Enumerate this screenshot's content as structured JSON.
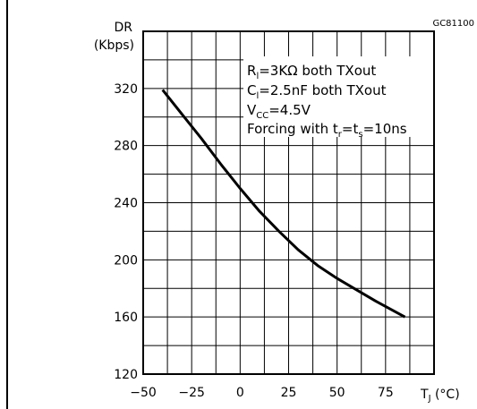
{
  "chart_data": {
    "type": "line",
    "code": "GC81100",
    "y_title_1": "DR",
    "y_title_2": "(Kbps)",
    "x_title": "T",
    "x_title_sub": "J",
    "x_title_unit": " (°C)",
    "x_ticks": [
      "-50",
      "-25",
      "0",
      "25",
      "50",
      "75"
    ],
    "y_ticks": [
      "120",
      "160",
      "200",
      "240",
      "280",
      "320"
    ],
    "xlim": [
      -50,
      100
    ],
    "ylim": [
      120,
      360
    ],
    "grid": true,
    "annotations": [
      {
        "main": "R",
        "sub": "l",
        "rest": "=3KΩ  both  TXout"
      },
      {
        "main": "C",
        "sub": "l",
        "rest": "=2.5nF both  TXout"
      },
      {
        "main": "V",
        "sub": "CC",
        "rest": "=4.5V"
      },
      {
        "main": "Forcing  with  t",
        "sub": "r",
        "rest": "=t",
        "sub2": "s",
        "rest2": "=10ns"
      }
    ],
    "series": [
      {
        "x": [
          -40,
          -30,
          -20,
          -10,
          0,
          10,
          20,
          30,
          40,
          50,
          60,
          70,
          85
        ],
        "y": [
          319,
          302,
          285,
          267,
          250,
          234,
          220,
          207,
          196,
          187,
          179,
          171,
          160
        ]
      }
    ]
  }
}
